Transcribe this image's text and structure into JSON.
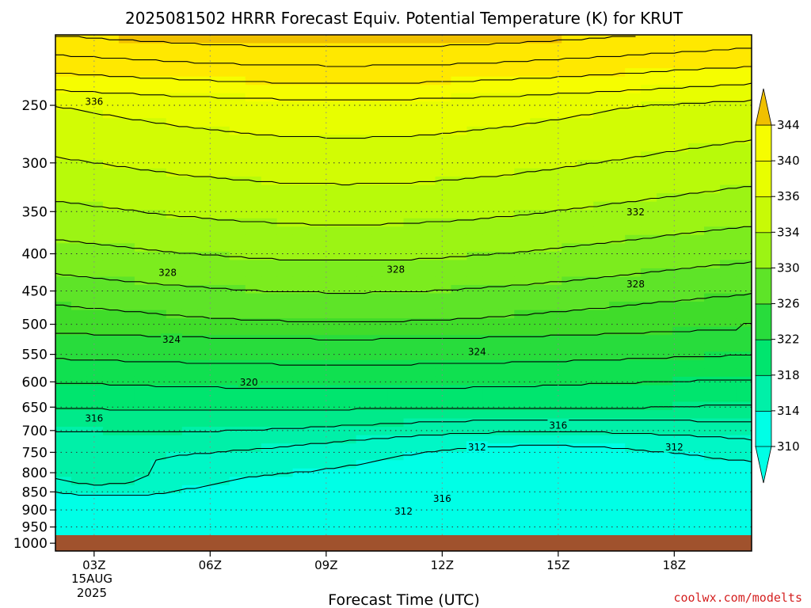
{
  "chart_data": {
    "type": "contour",
    "title": "2025081502 HRRR Forecast Equiv. Potential Temperature (K) for KRUT",
    "xlabel": "Forecast Time (UTC)",
    "ylabel": "",
    "x_ticks": [
      "03Z",
      "06Z",
      "09Z",
      "12Z",
      "15Z",
      "18Z"
    ],
    "x_tick_hours": [
      3,
      6,
      9,
      12,
      15,
      18
    ],
    "x_range_hours": [
      2,
      20
    ],
    "date_label_line1": "15AUG",
    "date_label_line2": "2025",
    "y_ticks": [
      "250",
      "300",
      "350",
      "400",
      "450",
      "500",
      "550",
      "600",
      "650",
      "700",
      "750",
      "800",
      "850",
      "900",
      "950",
      "1000"
    ],
    "y_tick_values": [
      250,
      300,
      350,
      400,
      450,
      500,
      550,
      600,
      650,
      700,
      750,
      800,
      850,
      900,
      950,
      1000
    ],
    "y_scale": "log-pressure",
    "y_range": [
      200,
      1025
    ],
    "grid": true,
    "ground_level_hPa": 975,
    "colorbar": {
      "levels": [
        310,
        314,
        318,
        322,
        326,
        330,
        334,
        336,
        340,
        344
      ],
      "labels": [
        "310",
        "314",
        "318",
        "322",
        "326",
        "330",
        "334",
        "336",
        "340",
        "344"
      ],
      "bands": [
        {
          "range": [
            310,
            312
          ],
          "color": "#00ffe6"
        },
        {
          "range": [
            312,
            314
          ],
          "color": "#00f7c6"
        },
        {
          "range": [
            314,
            316
          ],
          "color": "#00f0a8"
        },
        {
          "range": [
            316,
            318
          ],
          "color": "#00ea8a"
        },
        {
          "range": [
            318,
            320
          ],
          "color": "#00e56e"
        },
        {
          "range": [
            320,
            322
          ],
          "color": "#10e050"
        },
        {
          "range": [
            322,
            324
          ],
          "color": "#28dc3c"
        },
        {
          "range": [
            324,
            326
          ],
          "color": "#40dc2a"
        },
        {
          "range": [
            326,
            328
          ],
          "color": "#5ee428"
        },
        {
          "range": [
            328,
            330
          ],
          "color": "#7cec1e"
        },
        {
          "range": [
            330,
            332
          ],
          "color": "#9cf414"
        },
        {
          "range": [
            332,
            334
          ],
          "color": "#b8fa0a"
        },
        {
          "range": [
            334,
            336
          ],
          "color": "#d2fc04"
        },
        {
          "range": [
            336,
            338
          ],
          "color": "#e8fe00"
        },
        {
          "range": [
            338,
            340
          ],
          "color": "#f6fd00"
        },
        {
          "range": [
            340,
            344
          ],
          "color": "#ffe800"
        }
      ]
    },
    "contour_labels": [
      {
        "text": "336",
        "hour": 3.0,
        "p": 247
      },
      {
        "text": "332",
        "hour": 17.0,
        "p": 350
      },
      {
        "text": "328",
        "hour": 4.9,
        "p": 424
      },
      {
        "text": "328",
        "hour": 10.8,
        "p": 420
      },
      {
        "text": "328",
        "hour": 17.0,
        "p": 440
      },
      {
        "text": "324",
        "hour": 5.0,
        "p": 524
      },
      {
        "text": "324",
        "hour": 12.9,
        "p": 545
      },
      {
        "text": "320",
        "hour": 7.0,
        "p": 600
      },
      {
        "text": "316",
        "hour": 3.0,
        "p": 673
      },
      {
        "text": "316",
        "hour": 15.0,
        "p": 688
      },
      {
        "text": "316",
        "hour": 12.0,
        "p": 868
      },
      {
        "text": "312",
        "hour": 12.9,
        "p": 737
      },
      {
        "text": "312",
        "hour": 18.0,
        "p": 737
      },
      {
        "text": "312",
        "hour": 11.0,
        "p": 903
      }
    ],
    "ground_color": "#a0522d",
    "top_band_color": "#f0c000"
  },
  "credit": "coolwx.com/modelts",
  "colors": {
    "ground": "#a0522d",
    "credit": "#d42020",
    "gridline": "#333333"
  }
}
